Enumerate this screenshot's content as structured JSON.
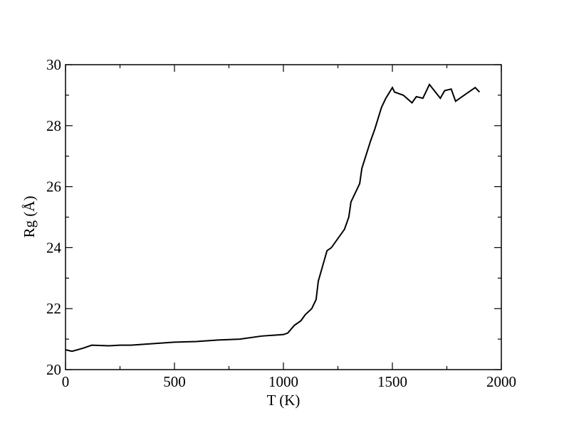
{
  "chart_data": {
    "type": "line",
    "x_label": "T (K)",
    "y_label": "Rg (Å)",
    "xlim": [
      0,
      2000
    ],
    "xticks": [
      0,
      500,
      1000,
      1500,
      2000
    ],
    "xminorticks": [
      250,
      750,
      1250,
      1750
    ],
    "ylim": [
      20,
      30
    ],
    "yticks": [
      20,
      22,
      24,
      26,
      28,
      30
    ],
    "yminorticks": [
      21,
      23,
      25,
      27,
      29
    ],
    "grid": false,
    "series": [
      {
        "color": "#000000",
        "x": [
          0,
          30,
          80,
          120,
          200,
          250,
          300,
          400,
          500,
          600,
          700,
          800,
          900,
          1000,
          1020,
          1050,
          1080,
          1100,
          1130,
          1150,
          1160,
          1180,
          1200,
          1220,
          1250,
          1280,
          1300,
          1310,
          1350,
          1360,
          1400,
          1420,
          1450,
          1470,
          1500,
          1510,
          1550,
          1590,
          1610,
          1640,
          1670,
          1720,
          1740,
          1770,
          1790,
          1850,
          1880,
          1900
        ],
        "values": [
          20.65,
          20.6,
          20.7,
          20.8,
          20.78,
          20.8,
          20.8,
          20.85,
          20.9,
          20.92,
          20.97,
          21.0,
          21.1,
          21.15,
          21.2,
          21.45,
          21.6,
          21.8,
          22.0,
          22.3,
          22.9,
          23.4,
          23.9,
          24.0,
          24.3,
          24.6,
          25.0,
          25.5,
          26.1,
          26.6,
          27.5,
          27.9,
          28.6,
          28.9,
          29.25,
          29.1,
          29.0,
          28.75,
          28.95,
          28.9,
          29.35,
          28.9,
          29.15,
          29.2,
          28.8,
          29.1,
          29.25,
          29.1
        ]
      }
    ]
  }
}
